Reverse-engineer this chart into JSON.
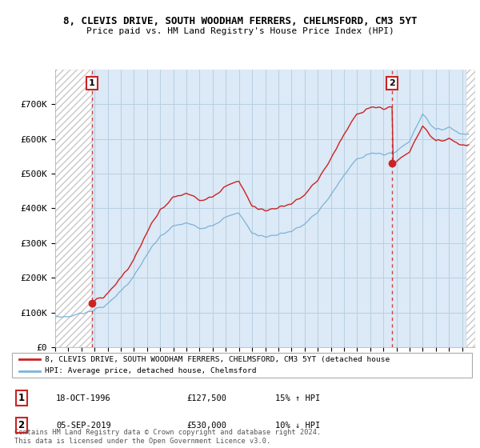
{
  "title1": "8, CLEVIS DRIVE, SOUTH WOODHAM FERRERS, CHELMSFORD, CM3 5YT",
  "title2": "Price paid vs. HM Land Registry's House Price Index (HPI)",
  "ylim": [
    0,
    800000
  ],
  "yticks": [
    0,
    100000,
    200000,
    300000,
    400000,
    500000,
    600000,
    700000
  ],
  "ytick_labels": [
    "£0",
    "£100K",
    "£200K",
    "£300K",
    "£400K",
    "£500K",
    "£600K",
    "£700K"
  ],
  "purchase1_year": 1996.8,
  "purchase1_price": 127500,
  "purchase2_year": 2019.67,
  "purchase2_price": 530000,
  "hpi_color": "#7ab4d8",
  "price_color": "#cc2222",
  "bg_plot_color": "#dce9f6",
  "hatch_color": "#c8c8c8",
  "grid_color": "#b8cfe0",
  "legend_label1": "8, CLEVIS DRIVE, SOUTH WOODHAM FERRERS, CHELMSFORD, CM3 5YT (detached house",
  "legend_label2": "HPI: Average price, detached house, Chelmsford",
  "table_row1_num": "1",
  "table_row1_date": "18-OCT-1996",
  "table_row1_price": "£127,500",
  "table_row1_hpi": "15% ↑ HPI",
  "table_row2_num": "2",
  "table_row2_date": "05-SEP-2019",
  "table_row2_price": "£530,000",
  "table_row2_hpi": "10% ↓ HPI",
  "footnote": "Contains HM Land Registry data © Crown copyright and database right 2024.\nThis data is licensed under the Open Government Licence v3.0.",
  "xstart": 1994,
  "xend": 2026
}
